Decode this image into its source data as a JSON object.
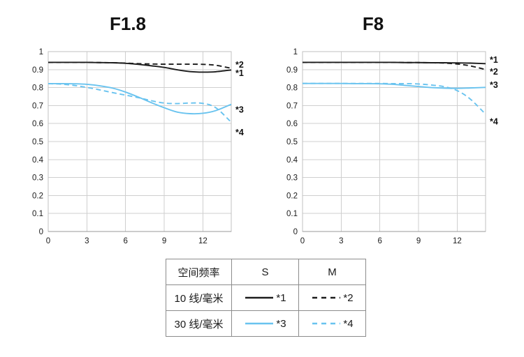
{
  "colors": {
    "black_line": "#1c1c1c",
    "blue_line": "#69c3ef",
    "grid": "#cfcfcf",
    "frame": "#c2c2c2",
    "axis": "#9a9a9a",
    "text": "#1a1a1a",
    "table_border": "#8c8c8c"
  },
  "chart_data": [
    {
      "type": "line",
      "title": "F1.8",
      "xlabel": "",
      "ylabel": "",
      "xlim": [
        0,
        14.2
      ],
      "ylim": [
        0,
        1
      ],
      "grid": true,
      "legend_position": "bottom-table",
      "x_ticks": [
        [
          0,
          "0"
        ],
        [
          3,
          "3"
        ],
        [
          6,
          "6"
        ],
        [
          9,
          "9"
        ],
        [
          12,
          "12"
        ]
      ],
      "y_ticks": [
        [
          1,
          "1"
        ],
        [
          0.9,
          "0.9"
        ],
        [
          0.8,
          "0.8"
        ],
        [
          0.7,
          "0.7"
        ],
        [
          0.6,
          "0.6"
        ],
        [
          0.5,
          "0.5"
        ],
        [
          0.4,
          "0.4"
        ],
        [
          0.3,
          "0.3"
        ],
        [
          0.2,
          "0.2"
        ],
        [
          0.1,
          "0.1"
        ],
        [
          0,
          "0"
        ]
      ],
      "x": [
        0,
        1,
        2,
        3,
        4,
        5,
        6,
        7,
        8,
        9,
        10,
        11,
        12,
        13,
        14.2
      ],
      "series": [
        {
          "name": "S 10 line/mm",
          "label": "*1",
          "color": "black_line",
          "dash": false,
          "label_value": 0.879,
          "values": [
            0.94,
            0.94,
            0.94,
            0.94,
            0.939,
            0.938,
            0.935,
            0.929,
            0.921,
            0.912,
            0.899,
            0.889,
            0.886,
            0.888,
            0.898
          ]
        },
        {
          "name": "M 10 line/mm",
          "label": "*2",
          "color": "black_line",
          "dash": true,
          "label_value": 0.926,
          "values": [
            0.94,
            0.94,
            0.94,
            0.94,
            0.939,
            0.938,
            0.936,
            0.933,
            0.931,
            0.93,
            0.93,
            0.93,
            0.929,
            0.924,
            0.907
          ]
        },
        {
          "name": "S 30 line/mm",
          "label": "*3",
          "color": "blue_line",
          "dash": false,
          "label_value": 0.676,
          "values": [
            0.822,
            0.822,
            0.821,
            0.818,
            0.81,
            0.797,
            0.775,
            0.747,
            0.716,
            0.688,
            0.664,
            0.655,
            0.657,
            0.672,
            0.707
          ]
        },
        {
          "name": "M 30 line/mm",
          "label": "*4",
          "color": "blue_line",
          "dash": true,
          "label_value": 0.55,
          "values": [
            0.822,
            0.819,
            0.812,
            0.801,
            0.787,
            0.772,
            0.758,
            0.744,
            0.727,
            0.714,
            0.711,
            0.714,
            0.712,
            0.688,
            0.607
          ]
        }
      ]
    },
    {
      "type": "line",
      "title": "F8",
      "xlabel": "",
      "ylabel": "",
      "xlim": [
        0,
        14.2
      ],
      "ylim": [
        0,
        1
      ],
      "grid": true,
      "legend_position": "bottom-table",
      "x_ticks": [
        [
          0,
          "0"
        ],
        [
          3,
          "3"
        ],
        [
          6,
          "6"
        ],
        [
          9,
          "9"
        ],
        [
          12,
          "12"
        ]
      ],
      "y_ticks": [
        [
          1,
          "1"
        ],
        [
          0.9,
          "0.9"
        ],
        [
          0.8,
          "0.8"
        ],
        [
          0.7,
          "0.7"
        ],
        [
          0.6,
          "0.6"
        ],
        [
          0.5,
          "0.5"
        ],
        [
          0.4,
          "0.4"
        ],
        [
          0.3,
          "0.3"
        ],
        [
          0.2,
          "0.2"
        ],
        [
          0.1,
          "0.1"
        ],
        [
          0,
          "0"
        ]
      ],
      "x": [
        0,
        1,
        2,
        3,
        4,
        5,
        6,
        7,
        8,
        9,
        10,
        11,
        12,
        13,
        14.2
      ],
      "series": [
        {
          "name": "S 10 line/mm",
          "label": "*1",
          "color": "black_line",
          "dash": false,
          "label_value": 0.953,
          "values": [
            0.94,
            0.94,
            0.94,
            0.94,
            0.94,
            0.94,
            0.94,
            0.94,
            0.939,
            0.939,
            0.938,
            0.938,
            0.937,
            0.936,
            0.933
          ]
        },
        {
          "name": "M 10 line/mm",
          "label": "*2",
          "color": "black_line",
          "dash": true,
          "label_value": 0.888,
          "values": [
            0.94,
            0.94,
            0.94,
            0.94,
            0.94,
            0.94,
            0.94,
            0.94,
            0.939,
            0.939,
            0.938,
            0.936,
            0.931,
            0.921,
            0.9
          ]
        },
        {
          "name": "S 30 line/mm",
          "label": "*3",
          "color": "blue_line",
          "dash": false,
          "label_value": 0.813,
          "values": [
            0.823,
            0.823,
            0.823,
            0.823,
            0.822,
            0.822,
            0.821,
            0.818,
            0.812,
            0.806,
            0.8,
            0.797,
            0.796,
            0.798,
            0.801
          ]
        },
        {
          "name": "M 30 line/mm",
          "label": "*4",
          "color": "blue_line",
          "dash": true,
          "label_value": 0.61,
          "values": [
            0.823,
            0.823,
            0.823,
            0.823,
            0.823,
            0.823,
            0.823,
            0.822,
            0.822,
            0.82,
            0.814,
            0.805,
            0.783,
            0.737,
            0.652
          ]
        }
      ]
    }
  ],
  "legend_table": {
    "header": [
      "空间频率",
      "S",
      "M"
    ],
    "rows": [
      {
        "freq": "10 线/毫米",
        "s": "*1",
        "m": "*2",
        "color": "black_line"
      },
      {
        "freq": "30 线/毫米",
        "s": "*3",
        "m": "*4",
        "color": "blue_line"
      }
    ]
  }
}
